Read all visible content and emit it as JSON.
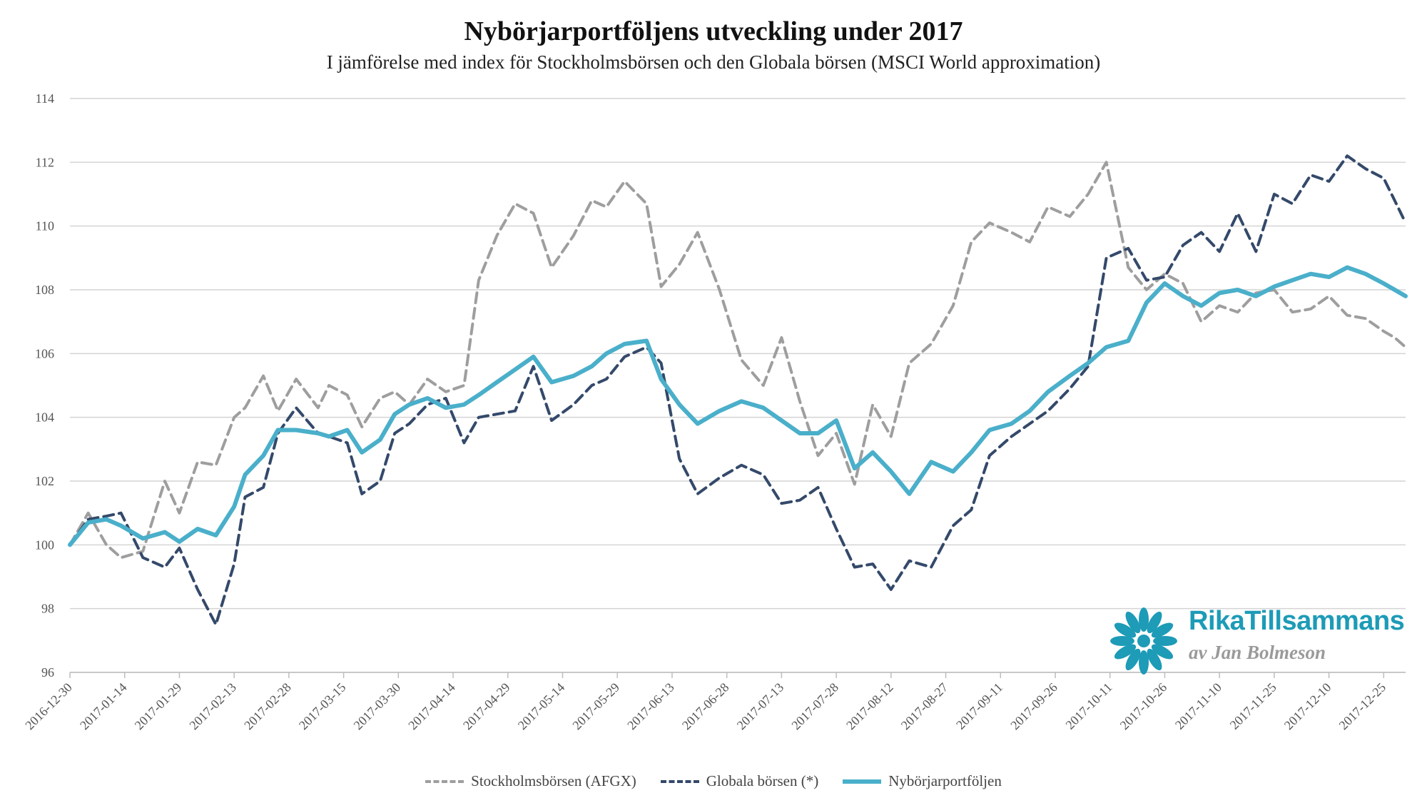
{
  "chart_data": {
    "type": "line",
    "title": "Nybörjarportföljens utveckling under 2017",
    "subtitle": "I jämförelse med index för Stockholmsbörsen och den Globala börsen (MSCI World approximation)",
    "ylim": [
      96,
      114
    ],
    "yticks": [
      96,
      98,
      100,
      102,
      104,
      106,
      108,
      110,
      112,
      114
    ],
    "xticks": [
      "2016-12-30",
      "2017-01-14",
      "2017-01-29",
      "2017-02-13",
      "2017-02-28",
      "2017-03-15",
      "2017-03-30",
      "2017-04-14",
      "2017-04-29",
      "2017-05-14",
      "2017-05-29",
      "2017-06-13",
      "2017-06-28",
      "2017-07-13",
      "2017-07-28",
      "2017-08-12",
      "2017-08-27",
      "2017-09-11",
      "2017-09-26",
      "2017-10-11",
      "2017-10-26",
      "2017-11-10",
      "2017-11-25",
      "2017-12-10",
      "2017-12-25"
    ],
    "x_days": [
      0,
      5,
      10,
      14,
      20,
      26,
      30,
      35,
      40,
      45,
      48,
      53,
      57,
      62,
      68,
      71,
      76,
      80,
      85,
      89,
      93,
      98,
      103,
      108,
      112,
      117,
      122,
      127,
      132,
      138,
      143,
      147,
      152,
      158,
      162,
      167,
      172,
      178,
      184,
      190,
      195,
      200,
      205,
      210,
      215,
      220,
      225,
      230,
      236,
      242,
      247,
      252,
      258,
      263,
      268,
      274,
      279,
      284,
      290,
      295,
      300,
      305,
      310,
      315,
      320,
      325,
      330,
      335,
      340,
      345,
      350,
      355,
      360,
      363,
      366
    ],
    "series": [
      {
        "name": "Stockholmsbörsen (AFGX)",
        "color": "#9e9e9e",
        "style": "dashed",
        "values": [
          100,
          101,
          100,
          99.6,
          99.8,
          102,
          101,
          102.6,
          102.5,
          104,
          104.3,
          105.3,
          104.2,
          105.2,
          104.3,
          105,
          104.7,
          103.7,
          104.6,
          104.8,
          104.4,
          105.2,
          104.8,
          105,
          108.3,
          109.7,
          110.7,
          110.4,
          108.7,
          109.7,
          110.8,
          110.6,
          111.4,
          110.7,
          108.1,
          108.8,
          109.8,
          108,
          105.8,
          105,
          106.5,
          104.5,
          102.8,
          103.5,
          101.9,
          104.4,
          103.4,
          105.7,
          106.3,
          107.5,
          109.5,
          110.1,
          109.8,
          109.5,
          110.6,
          110.3,
          111,
          112,
          108.7,
          108,
          108.5,
          108.2,
          107,
          107.5,
          107.3,
          107.9,
          108,
          107.3,
          107.4,
          107.8,
          107.2,
          107.1,
          106.7,
          106.5,
          106.2
        ]
      },
      {
        "name": "Globala börsen (*)",
        "color": "#34496a",
        "style": "dashed",
        "values": [
          100,
          100.8,
          100.9,
          101,
          99.6,
          99.3,
          99.9,
          98.6,
          97.5,
          99.4,
          101.5,
          101.8,
          103.5,
          104.3,
          103.5,
          103.4,
          103.2,
          101.6,
          102,
          103.5,
          103.8,
          104.4,
          104.6,
          103.2,
          104,
          104.1,
          104.2,
          105.6,
          103.9,
          104.4,
          105,
          105.2,
          105.9,
          106.2,
          105.7,
          102.7,
          101.6,
          102.1,
          102.5,
          102.2,
          101.3,
          101.4,
          101.8,
          100.5,
          99.3,
          99.4,
          98.6,
          99.5,
          99.3,
          100.6,
          101.1,
          102.8,
          103.4,
          103.8,
          104.2,
          104.9,
          105.6,
          109,
          109.3,
          108.3,
          108.4,
          109.4,
          109.8,
          109.2,
          110.4,
          109.2,
          111,
          110.7,
          111.6,
          111.4,
          112.2,
          111.8,
          111.5,
          110.8,
          110.1
        ]
      },
      {
        "name": "Nybörjarportföljen",
        "color": "#4aafca",
        "style": "solid",
        "values": [
          100,
          100.7,
          100.8,
          100.6,
          100.2,
          100.4,
          100.1,
          100.5,
          100.3,
          101.2,
          102.2,
          102.8,
          103.6,
          103.6,
          103.5,
          103.4,
          103.6,
          102.9,
          103.3,
          104.1,
          104.4,
          104.6,
          104.3,
          104.4,
          104.7,
          105.1,
          105.5,
          105.9,
          105.1,
          105.3,
          105.6,
          106,
          106.3,
          106.4,
          105.2,
          104.4,
          103.8,
          104.2,
          104.5,
          104.3,
          103.9,
          103.5,
          103.5,
          103.9,
          102.4,
          102.9,
          102.3,
          101.6,
          102.6,
          102.3,
          102.9,
          103.6,
          103.8,
          104.2,
          104.8,
          105.3,
          105.7,
          106.2,
          106.4,
          107.6,
          108.2,
          107.8,
          107.5,
          107.9,
          108,
          107.8,
          108.1,
          108.3,
          108.5,
          108.4,
          108.7,
          108.5,
          108.2,
          108,
          107.8
        ]
      }
    ]
  },
  "legend": {
    "items": [
      "Stockholmsbörsen (AFGX)",
      "Globala börsen (*)",
      "Nybörjarportföljen"
    ]
  },
  "logo": {
    "name": "RikaTillsammans",
    "author": "av Jan Bolmeson",
    "color": "#1d9bb7"
  }
}
